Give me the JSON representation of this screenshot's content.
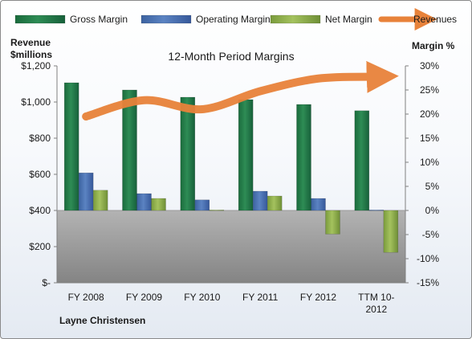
{
  "chart_data": {
    "type": "bar",
    "title": "12-Month Period Margins",
    "categories": [
      "FY 2008",
      "FY 2009",
      "FY 2010",
      "FY 2011",
      "FY 2012",
      "TTM 10-2012"
    ],
    "category_labels": [
      [
        "FY 2008"
      ],
      [
        "FY 2009"
      ],
      [
        "FY 2010"
      ],
      [
        "FY 2011"
      ],
      [
        "FY 2012"
      ],
      [
        "TTM 10-",
        "2012"
      ]
    ],
    "series": [
      {
        "name": "Gross Margin",
        "axis": "right",
        "color": "#1f7a45",
        "values": [
          26.5,
          25.0,
          23.5,
          23.0,
          22.0,
          20.7
        ]
      },
      {
        "name": "Operating Margin",
        "axis": "right",
        "color": "#4a72b0",
        "values": [
          7.8,
          3.5,
          2.2,
          4.0,
          2.5,
          0.1
        ]
      },
      {
        "name": "Net Margin",
        "axis": "right",
        "color": "#8fae4a",
        "values": [
          4.2,
          2.5,
          0.1,
          3.0,
          -4.9,
          -8.7
        ]
      },
      {
        "name": "Revenues",
        "axis": "left",
        "type": "line",
        "color": "#e8823a",
        "values": [
          920,
          1010,
          960,
          1060,
          1130,
          1140
        ]
      }
    ],
    "left_axis": {
      "label": [
        "Revenue",
        "$millions"
      ],
      "min": 0,
      "max": 1200,
      "step": 200,
      "ticks": [
        "$-",
        "$200",
        "$400",
        "$600",
        "$800",
        "$1,000",
        "$1,200"
      ]
    },
    "right_axis": {
      "label": "Margin %",
      "min": -15,
      "max": 30,
      "step": 5,
      "ticks": [
        "-15%",
        "-10%",
        "-5%",
        "0%",
        "5%",
        "10%",
        "15%",
        "20%",
        "25%",
        "30%"
      ]
    },
    "legend_position": "top",
    "gridlines": false,
    "footer": "Layne Christensen"
  }
}
